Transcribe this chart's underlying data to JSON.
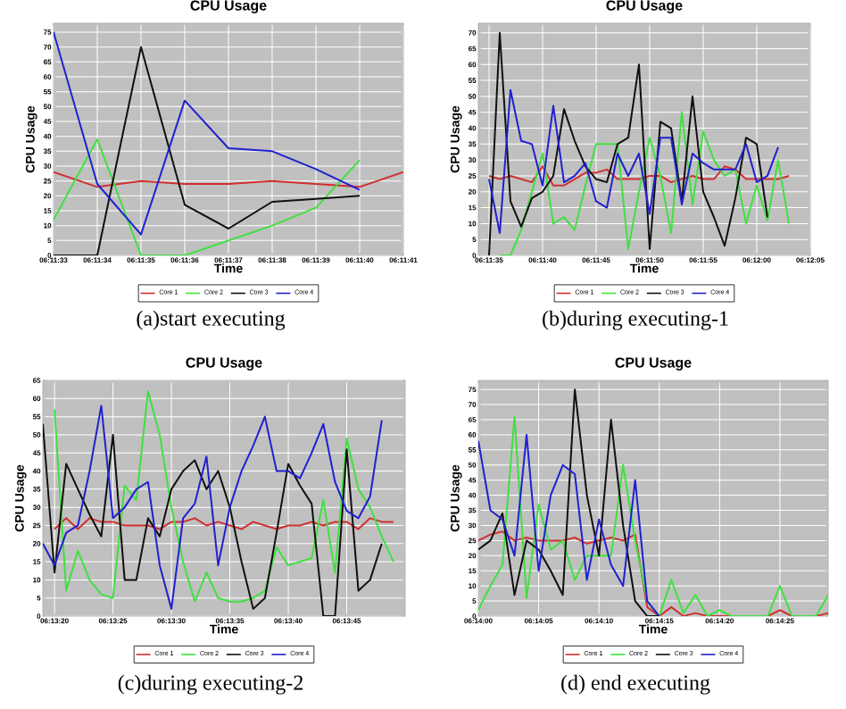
{
  "chart_data": [
    {
      "type": "line",
      "title": "CPU Usage",
      "xlabel": "Time",
      "ylabel": "CPU Usage",
      "legend": "bottom",
      "grid": true,
      "annotations": [
        "(a)start executing"
      ],
      "categories": [
        "06:11:33",
        "06:11:34",
        "06:11:35",
        "06:11:36",
        "06:11:37",
        "06:11:38",
        "06:11:39",
        "06:11:40",
        "06:11:41"
      ],
      "ylim": [
        0,
        78
      ],
      "yticks": [
        0,
        5,
        10,
        15,
        20,
        25,
        30,
        35,
        40,
        45,
        50,
        55,
        60,
        65,
        70,
        75
      ],
      "series": [
        {
          "name": "Core 1",
          "color": "#d03030",
          "values": [
            28,
            23,
            25,
            24,
            24,
            25,
            24,
            23,
            28
          ]
        },
        {
          "name": "Core 2",
          "color": "#40e040",
          "values": [
            12,
            39,
            0,
            0,
            5,
            10,
            16,
            32,
            null
          ]
        },
        {
          "name": "Core 3",
          "color": "#101010",
          "values": [
            0,
            0,
            70,
            17,
            9,
            18,
            19,
            20,
            null
          ]
        },
        {
          "name": "Core 4",
          "color": "#2020d0",
          "values": [
            75,
            24,
            7,
            52,
            36,
            35,
            29,
            22,
            null
          ]
        }
      ]
    },
    {
      "type": "line",
      "title": "CPU Usage",
      "xlabel": "Time",
      "ylabel": "CPU Usage",
      "legend": "bottom",
      "grid": true,
      "annotations": [
        "(b)during executing-1"
      ],
      "categories": [
        null,
        "06:11:35",
        null,
        null,
        null,
        null,
        "06:11:40",
        null,
        null,
        null,
        null,
        "06:11:45",
        null,
        null,
        null,
        null,
        "06:11:50",
        null,
        null,
        null,
        null,
        "06:11:55",
        null,
        null,
        null,
        null,
        "06:12:00",
        null,
        null,
        null,
        null,
        "06:12:05"
      ],
      "ylim": [
        0,
        73
      ],
      "yticks": [
        0,
        5,
        10,
        15,
        20,
        25,
        30,
        35,
        40,
        45,
        50,
        55,
        60,
        65,
        70
      ],
      "series": [
        {
          "name": "Core 1",
          "color": "#d03030",
          "values": [
            null,
            25,
            24,
            25,
            24,
            23,
            28,
            22,
            22,
            24,
            26,
            26,
            27,
            24,
            24,
            24,
            25,
            25,
            23,
            24,
            25,
            24,
            24,
            28,
            27,
            24,
            24,
            24,
            24,
            25,
            null,
            null
          ]
        },
        {
          "name": "Core 2",
          "color": "#40e040",
          "values": [
            null,
            null,
            0,
            0,
            8,
            20,
            32,
            10,
            12,
            8,
            22,
            35,
            35,
            35,
            2,
            20,
            37,
            25,
            7,
            45,
            16,
            39,
            30,
            25,
            27,
            10,
            22,
            11,
            30,
            10,
            null,
            null
          ]
        },
        {
          "name": "Core 3",
          "color": "#101010",
          "values": [
            null,
            0,
            70,
            17,
            9,
            18,
            20,
            25,
            46,
            36,
            28,
            24,
            23,
            35,
            37,
            60,
            2,
            42,
            40,
            17,
            50,
            20,
            12,
            3,
            18,
            37,
            35,
            12,
            null,
            null,
            null,
            null
          ]
        },
        {
          "name": "Core 4",
          "color": "#2020d0",
          "values": [
            null,
            24,
            7,
            52,
            36,
            35,
            22,
            47,
            23,
            25,
            29,
            17,
            15,
            32,
            25,
            32,
            13,
            37,
            37,
            16,
            32,
            29,
            27,
            27,
            27,
            35,
            23,
            25,
            34,
            null,
            null,
            null
          ]
        }
      ]
    },
    {
      "type": "line",
      "title": "CPU Usage",
      "xlabel": "Time",
      "ylabel": "CPU Usage",
      "legend": "bottom",
      "grid": true,
      "annotations": [
        "(c)during executing-2"
      ],
      "categories": [
        null,
        "06:13:20",
        null,
        null,
        null,
        null,
        "06:13:25",
        null,
        null,
        null,
        null,
        "06:13:30",
        null,
        null,
        null,
        null,
        "06:13:35",
        null,
        null,
        null,
        null,
        "06:13:40",
        null,
        null,
        null,
        null,
        "06:13:45",
        null,
        null,
        null,
        null,
        null
      ],
      "ylim": [
        0,
        65
      ],
      "yticks": [
        0,
        5,
        10,
        15,
        20,
        25,
        30,
        35,
        40,
        45,
        50,
        55,
        60,
        65
      ],
      "series": [
        {
          "name": "Core 1",
          "color": "#d03030",
          "values": [
            null,
            24,
            27,
            24,
            27,
            26,
            26,
            25,
            25,
            25,
            24,
            26,
            26,
            27,
            25,
            26,
            25,
            24,
            26,
            25,
            24,
            25,
            25,
            26,
            25,
            26,
            26,
            24,
            27,
            26,
            26,
            null
          ]
        },
        {
          "name": "Core 2",
          "color": "#40e040",
          "values": [
            null,
            57,
            7,
            18,
            10,
            6,
            5,
            36,
            32,
            62,
            50,
            30,
            15,
            4,
            12,
            5,
            4,
            4,
            5,
            7,
            19,
            14,
            15,
            16,
            32,
            12,
            49,
            35,
            30,
            22,
            15,
            null
          ]
        },
        {
          "name": "Core 3",
          "color": "#101010",
          "values": [
            53,
            12,
            42,
            35,
            28,
            22,
            50,
            10,
            10,
            27,
            22,
            35,
            40,
            43,
            35,
            40,
            30,
            15,
            2,
            5,
            23,
            42,
            36,
            31,
            0,
            0,
            46,
            7,
            10,
            20,
            null,
            null
          ]
        },
        {
          "name": "Core 4",
          "color": "#2020d0",
          "values": [
            20,
            14,
            23,
            25,
            40,
            58,
            27,
            30,
            35,
            37,
            14,
            2,
            27,
            31,
            44,
            14,
            30,
            40,
            47,
            55,
            40,
            40,
            38,
            45,
            53,
            37,
            29,
            27,
            33,
            54,
            null,
            null
          ]
        }
      ]
    },
    {
      "type": "line",
      "title": "CPU Usage",
      "xlabel": "Time",
      "ylabel": "CPU Usage",
      "legend": "bottom",
      "grid": true,
      "annotations": [
        "(d) end executing"
      ],
      "categories": [
        "06:14:00",
        null,
        null,
        null,
        null,
        "06:14:05",
        null,
        null,
        null,
        null,
        "06:14:10",
        null,
        null,
        null,
        null,
        "06:14:15",
        null,
        null,
        null,
        null,
        "06:14:20",
        null,
        null,
        null,
        null,
        "06:14:25",
        null,
        null,
        null,
        null
      ],
      "ylim": [
        0,
        78
      ],
      "yticks": [
        0,
        5,
        10,
        15,
        20,
        25,
        30,
        35,
        40,
        45,
        50,
        55,
        60,
        65,
        70,
        75
      ],
      "series": [
        {
          "name": "Core 1",
          "color": "#d03030",
          "values": [
            25,
            27,
            28,
            25,
            26,
            25,
            25,
            25,
            26,
            24,
            25,
            26,
            25,
            27,
            3,
            0,
            3,
            0,
            1,
            0,
            0,
            0,
            0,
            0,
            0,
            2,
            0,
            0,
            0,
            1
          ]
        },
        {
          "name": "Core 2",
          "color": "#40e040",
          "values": [
            2,
            10,
            17,
            66,
            6,
            37,
            22,
            25,
            12,
            20,
            20,
            20,
            50,
            25,
            5,
            0,
            12,
            1,
            7,
            0,
            2,
            0,
            0,
            0,
            0,
            10,
            0,
            0,
            0,
            7
          ]
        },
        {
          "name": "Core 3",
          "color": "#101010",
          "values": [
            22,
            25,
            34,
            7,
            25,
            22,
            15,
            7,
            75,
            40,
            20,
            65,
            30,
            5,
            0,
            0,
            null,
            null,
            null,
            null,
            null,
            null,
            null,
            null,
            null,
            null,
            null,
            null,
            null,
            null
          ]
        },
        {
          "name": "Core 4",
          "color": "#2020d0",
          "values": [
            58,
            35,
            32,
            20,
            60,
            15,
            40,
            50,
            47,
            12,
            32,
            17,
            10,
            45,
            5,
            0,
            null,
            null,
            null,
            null,
            null,
            null,
            null,
            null,
            null,
            null,
            null,
            null,
            null,
            null
          ]
        }
      ]
    }
  ]
}
